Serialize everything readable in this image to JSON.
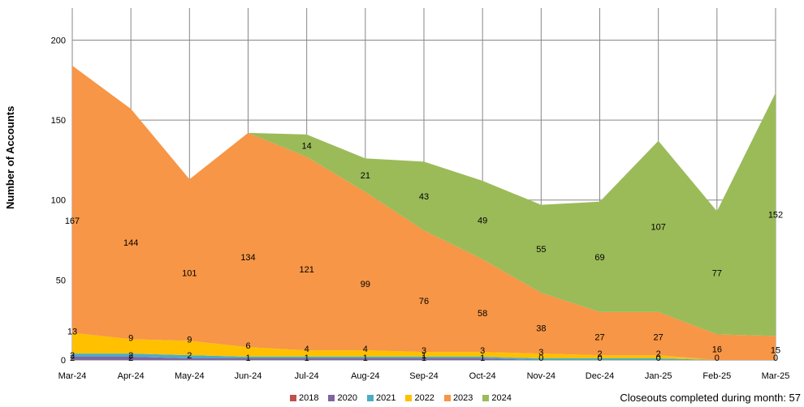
{
  "chart_data": {
    "type": "area",
    "title": "",
    "xlabel": "",
    "ylabel": "Number of Accounts",
    "ylim": [
      0,
      220
    ],
    "yticks": [
      0,
      50,
      100,
      150,
      200
    ],
    "grid": true,
    "stacked": true,
    "legend_position": "bottom",
    "categories": [
      "Mar-24",
      "Apr-24",
      "May-24",
      "Jun-24",
      "Jul-24",
      "Aug-24",
      "Sep-24",
      "Oct-24",
      "Nov-24",
      "Dec-24",
      "Jan-25",
      "Feb-25",
      "Mar-25"
    ],
    "series": [
      {
        "name": "2018",
        "color": "#c0504d",
        "values": [
          0,
          0,
          0,
          0,
          0,
          0,
          0,
          0,
          0,
          0,
          0,
          0,
          0
        ],
        "labels": [
          null,
          null,
          null,
          null,
          null,
          null,
          null,
          null,
          null,
          null,
          null,
          null,
          null
        ]
      },
      {
        "name": "2020",
        "color": "#8064a2",
        "values": [
          2,
          2,
          1,
          1,
          1,
          1,
          1,
          1,
          0,
          0,
          0,
          0,
          0
        ],
        "labels": [
          "2",
          "2",
          null,
          "1",
          "1",
          "1",
          "1",
          "1",
          "0",
          "0",
          "0",
          "0",
          "0"
        ]
      },
      {
        "name": "2021",
        "color": "#4bacc6",
        "values": [
          2,
          2,
          2,
          1,
          1,
          1,
          1,
          1,
          1,
          1,
          1,
          0,
          0
        ],
        "labels": [
          "2",
          "2",
          "2",
          null,
          null,
          null,
          "1",
          null,
          null,
          null,
          null,
          null,
          null
        ]
      },
      {
        "name": "2022",
        "color": "#ffc000",
        "values": [
          13,
          9,
          9,
          6,
          4,
          4,
          3,
          3,
          3,
          2,
          2,
          0,
          0
        ],
        "labels": [
          "13",
          "9",
          "9",
          "6",
          "4",
          "4",
          "3",
          "3",
          "3",
          "2",
          "2",
          null,
          null
        ]
      },
      {
        "name": "2023",
        "color": "#f79646",
        "values": [
          167,
          144,
          101,
          134,
          121,
          99,
          76,
          58,
          38,
          27,
          27,
          16,
          15
        ],
        "labels": [
          "167",
          "144",
          "101",
          "134",
          "121",
          "99",
          "76",
          "58",
          "38",
          "27",
          "27",
          "16",
          "15"
        ]
      },
      {
        "name": "2024",
        "color": "#9bbb59",
        "values": [
          0,
          0,
          0,
          0,
          14,
          21,
          43,
          49,
          55,
          69,
          107,
          77,
          152
        ],
        "labels": [
          null,
          null,
          null,
          null,
          "14",
          "21",
          "43",
          "49",
          "55",
          "69",
          "107",
          "77",
          "152"
        ]
      }
    ]
  },
  "footnote": "Closeouts completed during month: 57"
}
